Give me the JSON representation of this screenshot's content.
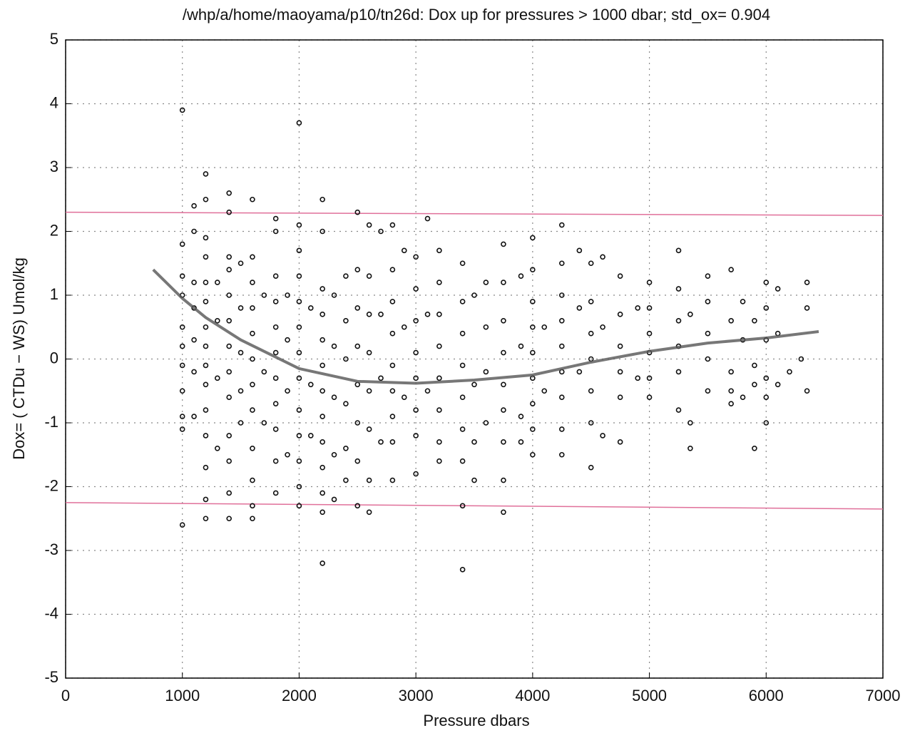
{
  "chart_data": {
    "type": "scatter",
    "title": "/whp/a/home/maoyama/p10/tn26d:  Dox up for pressures > 1000 dbar; std_ox= 0.904",
    "x_label": "Pressure dbars",
    "y_label": "Dox= ( CTDu − WS) Umol/kg",
    "xlim": [
      0,
      7000
    ],
    "ylim": [
      -5,
      5
    ],
    "xticks": [
      0,
      1000,
      2000,
      3000,
      4000,
      5000,
      6000,
      7000
    ],
    "yticks": [
      -5,
      -4,
      -3,
      -2,
      -1,
      0,
      1,
      2,
      3,
      4,
      5
    ],
    "grid": true,
    "points": {
      "color": "#111111",
      "x": [
        1000,
        1000,
        1000,
        1000,
        1000,
        1000,
        1000,
        1000,
        1000,
        1000,
        1000,
        1100,
        1100,
        1100,
        1100,
        1100,
        1100,
        1100,
        1200,
        1200,
        1200,
        1200,
        1200,
        1200,
        1200,
        1200,
        1200,
        1200,
        1200,
        1200,
        1200,
        1200,
        1200,
        1300,
        1300,
        1300,
        1300,
        1400,
        1400,
        1400,
        1400,
        1400,
        1400,
        1400,
        1400,
        1400,
        1400,
        1400,
        1400,
        1400,
        1500,
        1500,
        1500,
        1500,
        1500,
        1600,
        1600,
        1600,
        1600,
        1600,
        1600,
        1600,
        1600,
        1600,
        1600,
        1600,
        1600,
        1700,
        1700,
        1700,
        1800,
        1800,
        1800,
        1800,
        1800,
        1800,
        1800,
        1800,
        1800,
        1800,
        1800,
        1900,
        1900,
        1900,
        1900,
        2000,
        2000,
        2000,
        2000,
        2000,
        2000,
        2000,
        2000,
        2000,
        2000,
        2000,
        2000,
        2000,
        2100,
        2100,
        2100,
        2200,
        2200,
        2200,
        2200,
        2200,
        2200,
        2200,
        2200,
        2200,
        2200,
        2200,
        2200,
        2200,
        2300,
        2300,
        2300,
        2300,
        2300,
        2400,
        2400,
        2400,
        2400,
        2400,
        2400,
        2500,
        2500,
        2500,
        2500,
        2500,
        2500,
        2500,
        2500,
        2600,
        2600,
        2600,
        2600,
        2600,
        2600,
        2600,
        2600,
        2700,
        2700,
        2700,
        2700,
        2800,
        2800,
        2800,
        2800,
        2800,
        2800,
        2800,
        2800,
        2800,
        2900,
        2900,
        2900,
        3000,
        3000,
        3000,
        3000,
        3000,
        3000,
        3000,
        3000,
        3100,
        3100,
        3100,
        3200,
        3200,
        3200,
        3200,
        3200,
        3200,
        3200,
        3200,
        3400,
        3400,
        3400,
        3400,
        3400,
        3400,
        3400,
        3400,
        3400,
        3500,
        3500,
        3500,
        3500,
        3600,
        3600,
        3600,
        3600,
        3750,
        3750,
        3750,
        3750,
        3750,
        3750,
        3750,
        3750,
        3750,
        3900,
        3900,
        3900,
        3900,
        4000,
        4000,
        4000,
        4000,
        4000,
        4000,
        4000,
        4000,
        4000,
        4100,
        4100,
        4250,
        4250,
        4250,
        4250,
        4250,
        4250,
        4250,
        4250,
        4250,
        4400,
        4400,
        4400,
        4500,
        4500,
        4500,
        4500,
        4500,
        4500,
        4500,
        4600,
        4600,
        4600,
        4750,
        4750,
        4750,
        4750,
        4750,
        4750,
        4900,
        4900,
        5000,
        5000,
        5000,
        5000,
        5000,
        5000,
        5250,
        5250,
        5250,
        5250,
        5250,
        5250,
        5350,
        5350,
        5350,
        5500,
        5500,
        5500,
        5500,
        5500,
        5700,
        5700,
        5700,
        5700,
        5700,
        5800,
        5800,
        5800,
        5900,
        5900,
        5900,
        5900,
        6000,
        6000,
        6000,
        6000,
        6000,
        6000,
        6100,
        6100,
        6100,
        6200,
        6300,
        6350,
        6350,
        6350
      ],
      "values": [
        3.9,
        1.8,
        1.3,
        1.0,
        0.5,
        0.2,
        -0.1,
        -0.5,
        -0.9,
        -1.1,
        -2.6,
        2.4,
        2.0,
        1.2,
        0.8,
        0.3,
        -0.2,
        -0.9,
        2.9,
        2.5,
        1.9,
        1.6,
        1.2,
        0.9,
        0.5,
        0.2,
        -0.1,
        -0.4,
        -0.8,
        -1.2,
        -1.7,
        -2.2,
        -2.5,
        1.2,
        0.6,
        -0.3,
        -1.4,
        2.6,
        2.3,
        1.6,
        1.4,
        1.0,
        0.6,
        0.2,
        -0.2,
        -0.6,
        -1.2,
        -1.6,
        -2.1,
        -2.5,
        1.5,
        0.8,
        0.1,
        -0.5,
        -1.0,
        2.5,
        1.6,
        1.2,
        0.8,
        0.4,
        0.0,
        -0.4,
        -0.8,
        -1.4,
        -1.9,
        -2.3,
        -2.5,
        1.0,
        -0.2,
        -1.0,
        2.2,
        2.0,
        1.3,
        0.9,
        0.5,
        0.1,
        -0.3,
        -0.7,
        -1.1,
        -1.6,
        -2.1,
        1.0,
        0.3,
        -0.5,
        -1.5,
        3.7,
        2.1,
        1.7,
        1.3,
        0.9,
        0.5,
        0.1,
        -0.3,
        -0.8,
        -1.2,
        -1.6,
        -2.0,
        -2.3,
        0.8,
        -0.4,
        -1.2,
        2.5,
        2.0,
        1.1,
        0.7,
        0.3,
        -0.1,
        -0.5,
        -0.9,
        -1.3,
        -1.7,
        -2.1,
        -2.4,
        -3.2,
        1.0,
        0.2,
        -0.6,
        -1.5,
        -2.2,
        1.3,
        0.6,
        0.0,
        -0.7,
        -1.4,
        -1.9,
        2.3,
        1.4,
        0.8,
        0.2,
        -0.4,
        -1.0,
        -1.6,
        -2.3,
        2.1,
        1.3,
        0.7,
        0.1,
        -0.5,
        -1.1,
        -1.9,
        -2.4,
        2.0,
        0.7,
        -0.3,
        -1.3,
        2.1,
        1.4,
        0.9,
        0.4,
        -0.1,
        -0.5,
        -0.9,
        -1.3,
        -1.9,
        1.7,
        0.5,
        -0.6,
        1.6,
        1.1,
        0.6,
        0.1,
        -0.3,
        -0.8,
        -1.2,
        -1.8,
        2.2,
        0.7,
        -0.5,
        1.7,
        1.2,
        0.7,
        0.2,
        -0.3,
        -0.8,
        -1.3,
        -1.6,
        1.5,
        0.9,
        0.4,
        -0.1,
        -0.6,
        -1.1,
        -1.6,
        -2.3,
        -3.3,
        1.0,
        -0.4,
        -1.3,
        -1.9,
        1.2,
        0.5,
        -0.2,
        -1.0,
        1.8,
        1.2,
        0.6,
        0.1,
        -0.4,
        -0.8,
        -1.3,
        -1.9,
        -2.4,
        1.3,
        0.2,
        -0.9,
        -1.3,
        1.9,
        1.4,
        0.9,
        0.5,
        0.1,
        -0.3,
        -0.7,
        -1.1,
        -1.5,
        0.5,
        -0.5,
        2.1,
        1.5,
        1.0,
        0.6,
        0.2,
        -0.2,
        -0.6,
        -1.1,
        -1.5,
        1.7,
        0.8,
        -0.2,
        1.5,
        0.9,
        0.4,
        0.0,
        -0.5,
        -1.0,
        -1.7,
        1.6,
        0.5,
        -1.2,
        1.3,
        0.7,
        0.2,
        -0.2,
        -0.6,
        -1.3,
        0.8,
        -0.3,
        1.2,
        0.8,
        0.4,
        0.1,
        -0.3,
        -0.6,
        1.7,
        1.1,
        0.6,
        0.2,
        -0.2,
        -0.8,
        0.7,
        -1.0,
        -1.4,
        1.3,
        0.9,
        0.4,
        0.0,
        -0.5,
        1.4,
        0.6,
        -0.2,
        -0.7,
        -0.5,
        0.9,
        0.3,
        -0.6,
        0.6,
        -0.1,
        -0.4,
        -1.4,
        1.2,
        0.8,
        0.3,
        -0.3,
        -0.6,
        -1.0,
        1.1,
        0.4,
        -0.4,
        -0.2,
        0.0,
        1.2,
        0.8,
        -0.5
      ]
    },
    "fit": {
      "color": "#555555",
      "x": [
        750,
        1000,
        1200,
        1500,
        2000,
        2500,
        3000,
        3500,
        4000,
        4500,
        5000,
        5500,
        6000,
        6450
      ],
      "values": [
        1.4,
        0.95,
        0.65,
        0.3,
        -0.15,
        -0.35,
        -0.38,
        -0.33,
        -0.25,
        -0.05,
        0.12,
        0.25,
        0.33,
        0.43
      ]
    },
    "bounds": [
      {
        "color": "#e0709a",
        "x": [
          0,
          7000
        ],
        "values": [
          2.3,
          2.25
        ]
      },
      {
        "color": "#e0709a",
        "x": [
          0,
          7000
        ],
        "values": [
          -2.25,
          -2.35
        ]
      }
    ]
  }
}
